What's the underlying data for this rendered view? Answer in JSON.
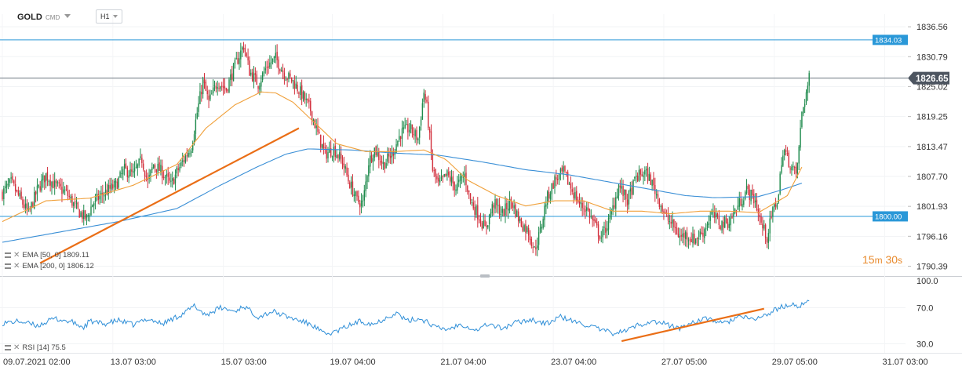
{
  "header": {
    "symbol": "GOLD",
    "market": "CMD",
    "timeframe": "H1"
  },
  "indicators": {
    "ema50_label": "EMA [50, 0] 1809.11",
    "ema200_label": "EMA [200, 0] 1806.12",
    "rsi_label": "RSI [14] 75.5"
  },
  "countdown": {
    "minutes": "15",
    "m": "m",
    "seconds": "30",
    "s": "s"
  },
  "colors": {
    "up": "#1e8a4c",
    "down": "#d22f3c",
    "ema50": "#f0a03a",
    "ema200": "#3a8fd6",
    "hline": "#2a98d8",
    "trend": "#ea6e16",
    "rsi": "#2f8fd8",
    "price_badge": "#4d5560"
  },
  "chart_data": [
    {
      "type": "candlestick",
      "title": "GOLD",
      "ylim": [
        1788.5,
        1839.0
      ],
      "y_ticks": [
        "1836.56",
        "1830.79",
        "1825.02",
        "1819.25",
        "1813.47",
        "1807.70",
        "1801.93",
        "1796.16",
        "1790.39"
      ],
      "x_ticks": [
        "09.07.2021  02:00",
        "13.07  03:00",
        "15.07  03:00",
        "19.07  04:00",
        "21.07  04:00",
        "23.07  04:00",
        "27.07  05:00",
        "29.07  05:00",
        "31.07  03:00"
      ],
      "x_tick_positions": [
        0,
        76,
        152,
        227,
        303,
        379,
        455,
        531,
        607
      ],
      "last_index": 555,
      "price_path": [
        [
          0,
          1804.5
        ],
        [
          6,
          1806.5
        ],
        [
          12,
          1803.5
        ],
        [
          18,
          1800.5
        ],
        [
          24,
          1805
        ],
        [
          30,
          1808
        ],
        [
          36,
          1806
        ],
        [
          44,
          1804.5
        ],
        [
          52,
          1801
        ],
        [
          58,
          1799.5
        ],
        [
          62,
          1802.5
        ],
        [
          70,
          1804.5
        ],
        [
          78,
          1806
        ],
        [
          84,
          1809
        ],
        [
          90,
          1808
        ],
        [
          96,
          1811
        ],
        [
          100,
          1806.5
        ],
        [
          104,
          1810
        ],
        [
          110,
          1808.5
        ],
        [
          116,
          1806
        ],
        [
          120,
          1808.5
        ],
        [
          126,
          1811.5
        ],
        [
          130,
          1813.5
        ],
        [
          134,
          1820
        ],
        [
          138,
          1826
        ],
        [
          142,
          1822
        ],
        [
          148,
          1826
        ],
        [
          154,
          1824.5
        ],
        [
          160,
          1829
        ],
        [
          166,
          1833
        ],
        [
          170,
          1828
        ],
        [
          176,
          1825.5
        ],
        [
          182,
          1829
        ],
        [
          188,
          1830.5
        ],
        [
          194,
          1827.5
        ],
        [
          200,
          1826
        ],
        [
          206,
          1823.5
        ],
        [
          212,
          1820.5
        ],
        [
          218,
          1815
        ],
        [
          222,
          1812
        ],
        [
          228,
          1813
        ],
        [
          234,
          1810.5
        ],
        [
          238,
          1807
        ],
        [
          244,
          1803
        ],
        [
          248,
          1802.5
        ],
        [
          252,
          1810.5
        ],
        [
          256,
          1813
        ],
        [
          262,
          1810
        ],
        [
          268,
          1812
        ],
        [
          274,
          1816
        ],
        [
          280,
          1817
        ],
        [
          286,
          1815
        ],
        [
          290,
          1824
        ],
        [
          292,
          1821
        ],
        [
          296,
          1809
        ],
        [
          300,
          1806
        ],
        [
          306,
          1808
        ],
        [
          312,
          1805.5
        ],
        [
          318,
          1808
        ],
        [
          322,
          1803
        ],
        [
          328,
          1800
        ],
        [
          332,
          1797.5
        ],
        [
          338,
          1802.5
        ],
        [
          344,
          1800.5
        ],
        [
          350,
          1803
        ],
        [
          356,
          1799
        ],
        [
          362,
          1797
        ],
        [
          366,
          1793.5
        ],
        [
          370,
          1797
        ],
        [
          374,
          1803
        ],
        [
          380,
          1807
        ],
        [
          386,
          1808.5
        ],
        [
          392,
          1805
        ],
        [
          398,
          1802
        ],
        [
          402,
          1801.5
        ],
        [
          408,
          1798
        ],
        [
          412,
          1796
        ],
        [
          418,
          1799.5
        ],
        [
          424,
          1806
        ],
        [
          430,
          1803
        ],
        [
          436,
          1807.5
        ],
        [
          442,
          1808.5
        ],
        [
          446,
          1807
        ],
        [
          452,
          1803
        ],
        [
          456,
          1800
        ],
        [
          462,
          1798
        ],
        [
          466,
          1796
        ],
        [
          470,
          1796.5
        ],
        [
          476,
          1795.5
        ],
        [
          482,
          1797
        ],
        [
          488,
          1800.5
        ],
        [
          494,
          1798.5
        ],
        [
          500,
          1799
        ],
        [
          506,
          1802
        ],
        [
          512,
          1805
        ],
        [
          518,
          1803
        ],
        [
          522,
          1798.5
        ],
        [
          526,
          1796
        ],
        [
          530,
          1801
        ],
        [
          534,
          1804
        ],
        [
          536,
          1811
        ],
        [
          538,
          1812.5
        ],
        [
          542,
          1810
        ],
        [
          546,
          1808
        ],
        [
          548,
          1813
        ],
        [
          550,
          1820
        ],
        [
          552,
          1822.5
        ],
        [
          555,
          1826.5
        ]
      ],
      "horizontal_lines": [
        {
          "value": 1834.03,
          "label": "1834.03",
          "kind": "level"
        },
        {
          "value": 1826.65,
          "label": "1826.65",
          "kind": "current"
        },
        {
          "value": 1800.0,
          "label": "1800.00",
          "kind": "level"
        }
      ],
      "ema50_path": [
        [
          0,
          1799
        ],
        [
          30,
          1803
        ],
        [
          60,
          1803.5
        ],
        [
          90,
          1806
        ],
        [
          120,
          1810
        ],
        [
          140,
          1817
        ],
        [
          160,
          1821.5
        ],
        [
          178,
          1824
        ],
        [
          188,
          1823.8
        ],
        [
          200,
          1822
        ],
        [
          215,
          1818
        ],
        [
          230,
          1814
        ],
        [
          250,
          1812.5
        ],
        [
          270,
          1812.5
        ],
        [
          290,
          1812.8
        ],
        [
          305,
          1811
        ],
        [
          320,
          1807
        ],
        [
          340,
          1804
        ],
        [
          360,
          1802
        ],
        [
          380,
          1803
        ],
        [
          400,
          1803
        ],
        [
          420,
          1801
        ],
        [
          440,
          1801
        ],
        [
          460,
          1800.5
        ],
        [
          480,
          1801
        ],
        [
          500,
          1801
        ],
        [
          520,
          1800.7
        ],
        [
          540,
          1804
        ],
        [
          550,
          1809.5
        ]
      ],
      "ema200_path": [
        [
          0,
          1795
        ],
        [
          40,
          1797
        ],
        [
          80,
          1799
        ],
        [
          120,
          1801.5
        ],
        [
          150,
          1806
        ],
        [
          175,
          1809.5
        ],
        [
          195,
          1812
        ],
        [
          210,
          1813
        ],
        [
          240,
          1812.8
        ],
        [
          270,
          1812.2
        ],
        [
          300,
          1811.8
        ],
        [
          330,
          1810.5
        ],
        [
          360,
          1809
        ],
        [
          390,
          1808
        ],
        [
          420,
          1806.5
        ],
        [
          450,
          1805
        ],
        [
          470,
          1804
        ],
        [
          490,
          1803.6
        ],
        [
          520,
          1803.8
        ],
        [
          535,
          1805
        ],
        [
          550,
          1806.4
        ]
      ],
      "trendlines": [
        {
          "p1": [
            26,
            1791.0
          ],
          "p2": [
            204,
            1817.0
          ]
        }
      ]
    },
    {
      "type": "line",
      "title": "RSI [14] 75.5",
      "ylim": [
        20,
        100
      ],
      "y_ticks": [
        "100.0",
        "70.0",
        "30.0"
      ],
      "levels": [
        70,
        30
      ],
      "rsi_path": [
        [
          0,
          53
        ],
        [
          12,
          55
        ],
        [
          24,
          50
        ],
        [
          36,
          58
        ],
        [
          48,
          54
        ],
        [
          56,
          48
        ],
        [
          60,
          55
        ],
        [
          70,
          52
        ],
        [
          80,
          56
        ],
        [
          90,
          51
        ],
        [
          100,
          58
        ],
        [
          110,
          52
        ],
        [
          120,
          60
        ],
        [
          126,
          65
        ],
        [
          132,
          72
        ],
        [
          140,
          62
        ],
        [
          150,
          70
        ],
        [
          160,
          66
        ],
        [
          166,
          72
        ],
        [
          176,
          60
        ],
        [
          186,
          66
        ],
        [
          196,
          60
        ],
        [
          206,
          55
        ],
        [
          214,
          50
        ],
        [
          222,
          40
        ],
        [
          230,
          44
        ],
        [
          238,
          50
        ],
        [
          246,
          55
        ],
        [
          256,
          52
        ],
        [
          266,
          61
        ],
        [
          272,
          64
        ],
        [
          278,
          55
        ],
        [
          286,
          58
        ],
        [
          292,
          55
        ],
        [
          298,
          48
        ],
        [
          306,
          46
        ],
        [
          316,
          52
        ],
        [
          326,
          45
        ],
        [
          334,
          52
        ],
        [
          344,
          47
        ],
        [
          354,
          54
        ],
        [
          364,
          57
        ],
        [
          374,
          52
        ],
        [
          384,
          60
        ],
        [
          394,
          54
        ],
        [
          404,
          50
        ],
        [
          412,
          45
        ],
        [
          420,
          42
        ],
        [
          428,
          44
        ],
        [
          436,
          50
        ],
        [
          446,
          55
        ],
        [
          456,
          52
        ],
        [
          466,
          47
        ],
        [
          476,
          55
        ],
        [
          486,
          58
        ],
        [
          496,
          52
        ],
        [
          506,
          60
        ],
        [
          516,
          57
        ],
        [
          526,
          62
        ],
        [
          534,
          70
        ],
        [
          542,
          73
        ],
        [
          548,
          72
        ],
        [
          552,
          75.5
        ]
      ],
      "trendlines": [
        {
          "p1": [
            426,
            33.0
          ],
          "p2": [
            524,
            69.0
          ]
        }
      ]
    }
  ]
}
